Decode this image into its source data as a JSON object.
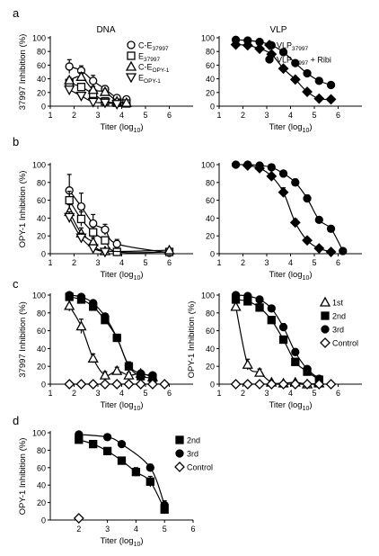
{
  "panel_labels": [
    "a",
    "b",
    "c",
    "d"
  ],
  "column_titles": [
    "DNA",
    "VLP"
  ],
  "x_ticks": [
    "1",
    "2",
    "3",
    "4",
    "5",
    "6"
  ],
  "y_ticks": [
    "0",
    "20",
    "40",
    "60",
    "80",
    "100"
  ],
  "chart_data": [
    {
      "panel": "a",
      "type": "line",
      "title": "DNA",
      "xlabel_base": "Titer (log",
      "xlabel_sub": "10",
      "ylabel": "37997 Inhibition (%)",
      "xlim": [
        1,
        7
      ],
      "ylim": [
        0,
        100
      ],
      "legend": [
        {
          "text": "C-E",
          "sub": "37997",
          "sup": ""
        },
        {
          "text": "E",
          "sub": "37997",
          "sup": ""
        },
        {
          "text": "C-E",
          "sub": "OPY-1",
          "sup": ""
        },
        {
          "text": "E",
          "sub": "OPY-1",
          "sup": ""
        }
      ],
      "series": [
        {
          "marker": "circle",
          "fill": "open",
          "x": [
            1.8,
            2.3,
            2.8,
            3.3,
            3.8,
            4.2
          ],
          "y": [
            58,
            52,
            37,
            25,
            12,
            10
          ],
          "err": [
            10,
            7,
            8,
            5,
            3,
            2
          ]
        },
        {
          "marker": "square",
          "fill": "open",
          "x": [
            1.8,
            2.3,
            2.8,
            3.3,
            3.8,
            4.2
          ],
          "y": [
            34,
            28,
            18,
            7,
            5,
            4
          ],
          "err": [
            5,
            4,
            3,
            2,
            1,
            1
          ]
        },
        {
          "marker": "triangle-up",
          "fill": "open",
          "x": [
            1.8,
            2.3,
            2.8,
            3.3,
            3.8,
            4.2
          ],
          "y": [
            38,
            43,
            24,
            21,
            7,
            5
          ],
          "err": [
            4,
            6,
            5,
            4,
            2,
            1
          ]
        },
        {
          "marker": "triangle-down",
          "fill": "open",
          "x": [
            1.8,
            2.3,
            2.8,
            3.3,
            3.8
          ],
          "y": [
            24,
            15,
            6,
            5,
            3
          ],
          "err": [
            3,
            3,
            2,
            1,
            1
          ]
        }
      ]
    },
    {
      "panel": "a",
      "type": "line",
      "title": "VLP",
      "xlabel_base": "Titer (log",
      "xlabel_sub": "10",
      "ylabel": "",
      "xlim": [
        1,
        7
      ],
      "ylim": [
        0,
        100
      ],
      "legend": [
        {
          "text": "VLP",
          "sub": "37997",
          "sup": ""
        },
        {
          "text": "VLP",
          "sub": "37997",
          "sup": " + Ribi"
        }
      ],
      "series": [
        {
          "marker": "diamond",
          "fill": "filled",
          "x": [
            1.7,
            2.2,
            2.7,
            3.2,
            3.7,
            4.2,
            4.7,
            5.2,
            5.7
          ],
          "y": [
            90,
            89,
            84,
            76,
            55,
            39,
            21,
            11,
            10
          ],
          "err": [
            2,
            2,
            3,
            3,
            4,
            3,
            3,
            2,
            2
          ]
        },
        {
          "marker": "circle",
          "fill": "filled",
          "x": [
            1.7,
            2.2,
            2.7,
            3.2,
            3.7,
            4.2,
            4.7,
            5.2,
            5.7
          ],
          "y": [
            97,
            96,
            94,
            89,
            79,
            63,
            48,
            37,
            31
          ],
          "err": [
            1,
            1,
            2,
            2,
            3,
            4,
            3,
            3,
            2
          ]
        }
      ]
    },
    {
      "panel": "b",
      "type": "line",
      "title": "",
      "xlabel_base": "Titer (log",
      "xlabel_sub": "10",
      "ylabel": "OPY-1 Inhibition (%)",
      "xlim": [
        1,
        7
      ],
      "ylim": [
        0,
        100
      ],
      "legend": [],
      "series": [
        {
          "marker": "circle",
          "fill": "open",
          "x": [
            1.8,
            2.3,
            2.8,
            3.3,
            3.8,
            6.0
          ],
          "y": [
            71,
            53,
            34,
            27,
            11,
            1
          ],
          "err": [
            18,
            15,
            10,
            6,
            5,
            2
          ]
        },
        {
          "marker": "square",
          "fill": "open",
          "x": [
            1.8,
            2.3,
            2.8,
            3.3,
            3.8,
            6.0
          ],
          "y": [
            60,
            39,
            24,
            15,
            2,
            2
          ],
          "err": [
            10,
            8,
            6,
            4,
            2,
            2
          ]
        },
        {
          "marker": "triangle-up",
          "fill": "open",
          "x": [
            1.8,
            2.3,
            2.8,
            3.3,
            6.0
          ],
          "y": [
            47,
            23,
            13,
            3,
            4
          ],
          "err": [
            8,
            6,
            5,
            3,
            2
          ]
        },
        {
          "marker": "triangle-down",
          "fill": "open",
          "x": [
            1.8,
            2.3,
            2.8,
            3.3
          ],
          "y": [
            41,
            18,
            6,
            2
          ],
          "err": [
            6,
            5,
            3,
            2
          ]
        }
      ]
    },
    {
      "panel": "b",
      "type": "line",
      "title": "",
      "xlabel_base": "Titer (log",
      "xlabel_sub": "10",
      "ylabel": "",
      "xlim": [
        1,
        7
      ],
      "ylim": [
        0,
        100
      ],
      "legend": [],
      "series": [
        {
          "marker": "diamond",
          "fill": "filled",
          "x": [
            2.2,
            2.7,
            3.2,
            3.7,
            4.2,
            4.7,
            5.2,
            5.7
          ],
          "y": [
            99,
            96,
            87,
            69,
            35,
            15,
            6,
            2
          ],
          "err": [
            1,
            2,
            3,
            5,
            4,
            3,
            2,
            1
          ]
        },
        {
          "marker": "circle",
          "fill": "filled",
          "x": [
            1.7,
            2.2,
            2.7,
            3.2,
            3.7,
            4.2,
            4.7,
            5.2,
            5.7,
            6.2
          ],
          "y": [
            100,
            100,
            99,
            97,
            90,
            80,
            62,
            38,
            28,
            3
          ],
          "err": [
            1,
            1,
            1,
            2,
            3,
            4,
            4,
            3,
            2,
            1
          ]
        }
      ]
    },
    {
      "panel": "c",
      "type": "line",
      "title": "",
      "xlabel_base": "Titer (log",
      "xlabel_sub": "10",
      "ylabel": "37997 Inhibition (%)",
      "xlim": [
        1,
        7
      ],
      "ylim": [
        0,
        100
      ],
      "legend": [],
      "series": [
        {
          "marker": "triangle-up",
          "fill": "open",
          "x": [
            1.8,
            2.3,
            2.8,
            3.3,
            3.8,
            4.3,
            4.8,
            5.3
          ],
          "y": [
            88,
            65,
            29,
            10,
            15,
            10,
            12,
            8
          ],
          "err": [
            6,
            8,
            5,
            4,
            4,
            3,
            3,
            2
          ]
        },
        {
          "marker": "square",
          "fill": "filled",
          "x": [
            1.8,
            2.3,
            2.8,
            3.3,
            3.8,
            4.3,
            4.8,
            5.3
          ],
          "y": [
            98,
            95,
            87,
            72,
            52,
            20,
            9,
            7
          ],
          "err": [
            2,
            2,
            3,
            4,
            4,
            4,
            3,
            2
          ]
        },
        {
          "marker": "circle",
          "fill": "filled",
          "x": [
            1.8,
            2.3,
            2.8,
            3.3,
            3.8,
            4.3,
            4.8,
            5.3
          ],
          "y": [
            100,
            98,
            91,
            76,
            52,
            21,
            12,
            10
          ],
          "err": [
            1,
            2,
            3,
            3,
            4,
            4,
            3,
            2
          ]
        },
        {
          "marker": "diamond",
          "fill": "open",
          "x": [
            1.8,
            2.3,
            2.8,
            3.3,
            3.8,
            4.3,
            4.8,
            5.3,
            5.8
          ],
          "y": [
            0,
            0,
            0,
            0,
            0,
            0,
            0,
            0,
            0
          ],
          "err": [
            0,
            0,
            0,
            0,
            0,
            0,
            0,
            0,
            0
          ]
        }
      ]
    },
    {
      "panel": "c",
      "type": "line",
      "title": "",
      "xlabel_base": "Titer (log",
      "xlabel_sub": "10",
      "ylabel": "OPY-1 Inhibition (%)",
      "xlim": [
        1,
        7
      ],
      "ylim": [
        0,
        100
      ],
      "legend": [
        {
          "text": "1st",
          "sub": "",
          "sup": ""
        },
        {
          "text": "2nd",
          "sub": "",
          "sup": ""
        },
        {
          "text": "3rd",
          "sub": "",
          "sup": ""
        },
        {
          "text": "Control",
          "sub": "",
          "sup": ""
        }
      ],
      "series": [
        {
          "marker": "triangle-up",
          "fill": "open",
          "x": [
            1.7,
            2.2,
            2.7,
            3.2,
            3.7,
            4.2,
            4.7,
            5.2
          ],
          "y": [
            87,
            22,
            13,
            2,
            1,
            2,
            0,
            1
          ],
          "err": [
            4,
            6,
            4,
            2,
            1,
            1,
            1,
            1
          ]
        },
        {
          "marker": "square",
          "fill": "filled",
          "x": [
            1.7,
            2.2,
            2.7,
            3.2,
            3.7,
            4.2,
            4.7,
            5.2
          ],
          "y": [
            95,
            93,
            86,
            72,
            50,
            25,
            14,
            5
          ],
          "err": [
            2,
            2,
            3,
            4,
            4,
            4,
            3,
            2
          ]
        },
        {
          "marker": "circle",
          "fill": "filled",
          "x": [
            1.7,
            2.2,
            2.7,
            3.2,
            3.7,
            4.2,
            4.7,
            5.2
          ],
          "y": [
            100,
            99,
            95,
            85,
            64,
            36,
            17,
            6
          ],
          "err": [
            1,
            1,
            2,
            3,
            4,
            4,
            3,
            2
          ]
        },
        {
          "marker": "diamond",
          "fill": "open",
          "x": [
            1.7,
            2.2,
            2.7,
            3.2,
            3.7,
            4.2,
            4.7,
            5.2,
            5.7
          ],
          "y": [
            0,
            0,
            0,
            0,
            0,
            0,
            0,
            0,
            0
          ],
          "err": [
            0,
            0,
            0,
            0,
            0,
            0,
            0,
            0,
            0
          ]
        }
      ]
    },
    {
      "panel": "d",
      "type": "line",
      "title": "",
      "xlabel_base": "Titer (log",
      "xlabel_sub": "10",
      "ylabel": "OPY-1 Inhibition (%)",
      "xlim": [
        1,
        6
      ],
      "ylim": [
        0,
        100
      ],
      "legend": [
        {
          "text": "2nd",
          "sub": "",
          "sup": ""
        },
        {
          "text": "3rd",
          "sub": "",
          "sup": ""
        },
        {
          "text": "Control",
          "sub": "",
          "sup": ""
        }
      ],
      "series": [
        {
          "marker": "square",
          "fill": "filled",
          "x": [
            2.0,
            2.5,
            3.0,
            3.5,
            4.0,
            4.5,
            5.0
          ],
          "y": [
            92,
            87,
            79,
            68,
            55,
            44,
            12
          ],
          "err": [
            3,
            3,
            3,
            4,
            5,
            6,
            5
          ]
        },
        {
          "marker": "circle",
          "fill": "filled",
          "x": [
            2.0,
            3.0,
            3.5,
            4.5,
            5.0
          ],
          "y": [
            98,
            95,
            87,
            60,
            17
          ],
          "err": [
            1,
            1,
            2,
            4,
            5
          ]
        },
        {
          "marker": "diamond",
          "fill": "open",
          "x": [
            2.0
          ],
          "y": [
            2
          ],
          "err": [
            0
          ]
        }
      ]
    }
  ]
}
